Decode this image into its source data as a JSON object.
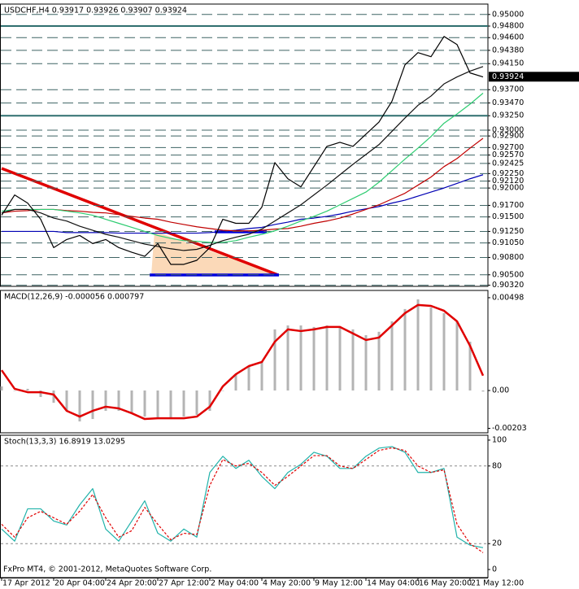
{
  "chart_data": [
    {
      "type": "line",
      "title": "USDCHF,H4  0.93917 0.93926 0.93907 0.93924",
      "categories": [
        "17 Apr 2012",
        null,
        null,
        null,
        "20 Apr 04:00",
        null,
        null,
        null,
        "24 Apr 20:00",
        null,
        null,
        null,
        "27 Apr 12:00",
        null,
        null,
        null,
        "2 May 04:00",
        null,
        null,
        null,
        "4 May 20:00",
        null,
        null,
        null,
        "9 May 12:00",
        null,
        null,
        null,
        "14 May 04:00",
        null,
        null,
        null,
        "16 May 20:00",
        null,
        null,
        null,
        "21 May 12:00",
        null
      ],
      "ylim": [
        0.903,
        0.9518
      ],
      "yticks": [
        {
          "value": 0.95,
          "label": "0.95000"
        },
        {
          "value": 0.948,
          "label": "0.94800"
        },
        {
          "value": 0.946,
          "label": "0.94600"
        },
        {
          "value": 0.9438,
          "label": "0.94380"
        },
        {
          "value": 0.9415,
          "label": "0.94150"
        },
        {
          "value": 0.937,
          "label": "0.93700"
        },
        {
          "value": 0.9347,
          "label": "0.93470"
        },
        {
          "value": 0.9325,
          "label": "0.93250"
        },
        {
          "value": 0.93,
          "label": "0.93000"
        },
        {
          "value": 0.929,
          "label": "0.92900"
        },
        {
          "value": 0.927,
          "label": "0.92700"
        },
        {
          "value": 0.9257,
          "label": "0.92570"
        },
        {
          "value": 0.92425,
          "label": "0.92425"
        },
        {
          "value": 0.9225,
          "label": "0.92250"
        },
        {
          "value": 0.9212,
          "label": "0.92120"
        },
        {
          "value": 0.92,
          "label": "0.92000"
        },
        {
          "value": 0.917,
          "label": "0.91700"
        },
        {
          "value": 0.915,
          "label": "0.91500"
        },
        {
          "value": 0.9125,
          "label": "0.91250"
        },
        {
          "value": 0.9105,
          "label": "0.91050"
        },
        {
          "value": 0.908,
          "label": "0.90800"
        },
        {
          "value": 0.905,
          "label": "0.90500"
        },
        {
          "value": 0.9032,
          "label": "0.90320"
        }
      ],
      "grid": true,
      "grid_color": "#3f6464",
      "levels": [
        0.948,
        0.9325
      ],
      "level_color": "#2f6f6f",
      "level_dashed": false,
      "last_price": 0.93924,
      "series": [
        {
          "color": "#0000b4",
          "values": [
            0.9125,
            0.9125,
            0.9125,
            0.9125,
            0.9125,
            0.9123,
            0.9123,
            0.9123,
            0.9123,
            0.9122,
            0.9122,
            0.9122,
            0.9122,
            0.9122,
            0.9122,
            0.9122,
            0.9123,
            0.9125,
            0.9127,
            0.913,
            0.9132,
            0.9137,
            0.9141,
            0.9146,
            0.9148,
            0.9151,
            0.9155,
            0.916,
            0.9164,
            0.9168,
            0.9174,
            0.9179,
            0.9186,
            0.9193,
            0.92,
            0.9208,
            0.9216,
            0.9223
          ]
        },
        {
          "color": "#c00000",
          "values": [
            0.9157,
            0.916,
            0.9161,
            0.9163,
            0.9163,
            0.9161,
            0.916,
            0.9158,
            0.9157,
            0.9154,
            0.9151,
            0.9148,
            0.9146,
            0.9141,
            0.9137,
            0.9133,
            0.913,
            0.9127,
            0.9126,
            0.9126,
            0.9127,
            0.9129,
            0.913,
            0.9134,
            0.9139,
            0.9143,
            0.9148,
            0.9155,
            0.9163,
            0.9171,
            0.9181,
            0.9191,
            0.9205,
            0.9219,
            0.9237,
            0.9251,
            0.9269,
            0.9286
          ]
        },
        {
          "color": "#2ecc71",
          "values": [
            0.916,
            0.9163,
            0.9163,
            0.9163,
            0.9163,
            0.916,
            0.9157,
            0.9153,
            0.9146,
            0.9139,
            0.9132,
            0.9125,
            0.9118,
            0.9113,
            0.9109,
            0.9108,
            0.9106,
            0.9106,
            0.9109,
            0.9115,
            0.912,
            0.9126,
            0.9134,
            0.9143,
            0.9151,
            0.916,
            0.9171,
            0.9182,
            0.9193,
            0.921,
            0.923,
            0.925,
            0.9269,
            0.9289,
            0.9312,
            0.9328,
            0.9345,
            0.9364
          ]
        },
        {
          "color": "#111111",
          "values": [
            0.9157,
            0.9163,
            0.9163,
            0.9157,
            0.9148,
            0.9143,
            0.9134,
            0.9127,
            0.912,
            0.9115,
            0.9109,
            0.9103,
            0.9099,
            0.9095,
            0.9092,
            0.9094,
            0.9101,
            0.9109,
            0.9115,
            0.912,
            0.9129,
            0.9143,
            0.9157,
            0.9171,
            0.9188,
            0.9205,
            0.9223,
            0.9241,
            0.9258,
            0.9275,
            0.9298,
            0.9321,
            0.9343,
            0.9359,
            0.938,
            0.9392,
            0.9402,
            0.941
          ]
        },
        {
          "color": "#000000",
          "values": [
            0.9153,
            0.9188,
            0.9174,
            0.9146,
            0.9097,
            0.9111,
            0.9118,
            0.9104,
            0.9111,
            0.9097,
            0.9089,
            0.9082,
            0.9104,
            0.9068,
            0.9068,
            0.9075,
            0.9097,
            0.9146,
            0.9139,
            0.9139,
            0.9167,
            0.9244,
            0.9216,
            0.9202,
            0.9237,
            0.9272,
            0.9279,
            0.9272,
            0.9293,
            0.9314,
            0.935,
            0.9413,
            0.9434,
            0.9427,
            0.9462,
            0.9448,
            0.9399,
            0.9392
          ]
        }
      ]
    },
    {
      "type": "macd",
      "title": "MACD(12,26,9) -0.000056 0.000797",
      "ylim": [
        -0.00227,
        0.00537
      ],
      "yticks": [
        0.00498,
        {
          "value": 0,
          "label": "0.00"
        },
        -0.00203
      ],
      "grid": false,
      "series": [
        {
          "style": "histogram",
          "color": "#b4b4b4",
          "values": [
            0.00022,
            0,
            9e-05,
            -0.00035,
            -0.00066,
            -0.00109,
            -0.00166,
            -0.00153,
            -0.00109,
            -0.00109,
            -0.00122,
            -0.0014,
            -0.00153,
            -0.00153,
            -0.0014,
            -0.00131,
            -0.00109,
            0,
            0.00087,
            0.00131,
            0.00153,
            0.00328,
            0.00349,
            0.00349,
            0.00341,
            0.00349,
            0.00341,
            0.00328,
            0.00297,
            0.00315,
            0.00371,
            0.00437,
            0.00489,
            0.00446,
            0.00415,
            0.00371,
            0.00262,
            -5.6e-05
          ]
        },
        {
          "style": "line",
          "color": "#e00000",
          "width": 2.5,
          "values": [
            0.00109,
            9e-05,
            -9e-05,
            -9e-05,
            -0.00022,
            -0.00109,
            -0.0014,
            -0.00109,
            -0.00087,
            -0.00096,
            -0.00122,
            -0.00153,
            -0.00149,
            -0.00149,
            -0.00149,
            -0.0014,
            -0.00087,
            0.00022,
            0.00087,
            0.00131,
            0.00153,
            0.00262,
            0.00328,
            0.00319,
            0.00328,
            0.00341,
            0.00341,
            0.00306,
            0.00271,
            0.00284,
            0.00349,
            0.00415,
            0.00459,
            0.00454,
            0.00428,
            0.00371,
            0.0024,
            0.000797
          ]
        }
      ]
    },
    {
      "type": "line",
      "title": "Stoch(13,3,3) 16.8919 13.0295",
      "annotation": "FxPro MT4, © 2001-2012, MetaQuotes Software Corp.",
      "ylim": [
        -6.25,
        103.75
      ],
      "yticks": [
        100,
        80,
        20,
        0
      ],
      "grid": false,
      "levels": [
        20,
        80
      ],
      "level_color": "#8c8c8c",
      "level_dashed": true,
      "series": [
        {
          "style": "line",
          "color": "#20b2aa",
          "values": [
            31.3,
            21.9,
            46.9,
            46.9,
            37.5,
            34.4,
            50,
            62.5,
            31.3,
            21.9,
            37.5,
            53.1,
            28.1,
            21.9,
            31.3,
            25,
            75,
            87.5,
            78.1,
            84.4,
            71.9,
            62.5,
            75,
            81.3,
            90.6,
            87.5,
            78.1,
            78.1,
            87.5,
            93.8,
            95,
            90.6,
            75,
            75,
            78.1,
            25,
            18.8,
            16.8919
          ]
        },
        {
          "style": "line",
          "color": "#e00000",
          "dashed": true,
          "values": [
            35,
            25,
            40,
            45,
            40,
            35,
            45,
            58,
            40,
            25,
            30,
            48,
            35,
            23,
            28,
            27,
            65,
            85,
            80,
            82,
            75,
            65,
            72,
            80,
            88,
            88,
            80,
            78,
            85,
            92,
            94,
            92,
            80,
            75,
            77,
            35,
            20,
            13.0295
          ]
        }
      ]
    }
  ]
}
